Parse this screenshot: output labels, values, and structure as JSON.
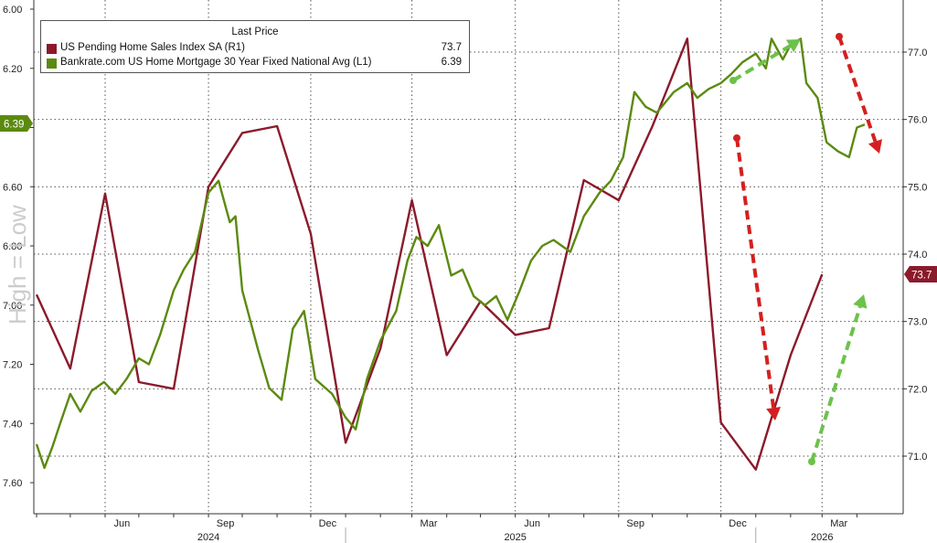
{
  "colors": {
    "pending": "#8B1A2B",
    "mortgage": "#5B8A0F",
    "red_arrow": "#D42020",
    "green_arrow": "#6CC24A",
    "grid": "#555555",
    "watermark": "#cccccc"
  },
  "legend": {
    "header": "Last Price",
    "items": [
      {
        "name": "US Pending Home Sales Index SA  (R1)",
        "value": "73.7",
        "color": "#8B1A2B"
      },
      {
        "name": "Bankrate.com US Home Mortgage 30 Year Fixed National Avg  (L1)",
        "value": "6.39",
        "color": "#5B8A0F"
      }
    ]
  },
  "badges": {
    "left": "6.39",
    "right": "73.7"
  },
  "watermark": "High = Low",
  "chart_data": {
    "type": "line",
    "x_month_labels": [
      "Jun",
      "Sep",
      "Dec",
      "Mar",
      "Jun",
      "Sep",
      "Dec",
      "Mar"
    ],
    "x_year_labels": [
      "2024",
      "2025",
      "2026"
    ],
    "x_range": [
      "2024-04-01",
      "2026-04-08"
    ],
    "y_left": {
      "ticks": [
        "6.00",
        "6.20",
        "6.40",
        "6.60",
        "6.80",
        "7.00",
        "7.20",
        "7.40",
        "7.60"
      ],
      "range": [
        6.0,
        7.6
      ],
      "inverted": true
    },
    "y_right": {
      "ticks": [
        "77.0",
        "76.0",
        "75.0",
        "74.0",
        "73.0",
        "72.0",
        "71.0"
      ],
      "range": [
        70.4,
        77.8
      ]
    },
    "grid": "dotted horizontal and vertical",
    "series": [
      {
        "name": "US Pending Home Sales Index SA",
        "axis": "right",
        "points": [
          [
            "2024-04-01",
            73.4
          ],
          [
            "2024-05-01",
            72.3
          ],
          [
            "2024-06-01",
            74.9
          ],
          [
            "2024-07-01",
            72.1
          ],
          [
            "2024-08-01",
            72.0
          ],
          [
            "2024-09-01",
            75.0
          ],
          [
            "2024-10-01",
            75.8
          ],
          [
            "2024-11-01",
            75.9
          ],
          [
            "2024-12-01",
            74.3
          ],
          [
            "2025-01-01",
            71.2
          ],
          [
            "2025-02-01",
            72.6
          ],
          [
            "2025-03-01",
            74.8
          ],
          [
            "2025-04-01",
            72.5
          ],
          [
            "2025-05-01",
            73.3
          ],
          [
            "2025-06-01",
            72.8
          ],
          [
            "2025-07-01",
            72.9
          ],
          [
            "2025-08-01",
            75.1
          ],
          [
            "2025-09-01",
            74.8
          ],
          [
            "2025-10-01",
            75.9
          ],
          [
            "2025-11-01",
            77.2
          ],
          [
            "2025-12-01",
            71.5
          ],
          [
            "2026-01-01",
            70.8
          ],
          [
            "2026-02-01",
            72.5
          ],
          [
            "2026-03-01",
            73.7
          ]
        ]
      },
      {
        "name": "Bankrate.com US Home Mortgage 30 Year Fixed National Avg",
        "axis": "left",
        "points": [
          [
            "2024-04-01",
            7.47
          ],
          [
            "2024-04-08",
            7.55
          ],
          [
            "2024-04-15",
            7.48
          ],
          [
            "2024-04-22",
            7.4
          ],
          [
            "2024-05-01",
            7.3
          ],
          [
            "2024-05-10",
            7.36
          ],
          [
            "2024-05-20",
            7.29
          ],
          [
            "2024-05-31",
            7.26
          ],
          [
            "2024-06-10",
            7.3
          ],
          [
            "2024-06-20",
            7.25
          ],
          [
            "2024-07-01",
            7.18
          ],
          [
            "2024-07-10",
            7.2
          ],
          [
            "2024-07-20",
            7.1
          ],
          [
            "2024-08-01",
            6.95
          ],
          [
            "2024-08-10",
            6.88
          ],
          [
            "2024-08-20",
            6.82
          ],
          [
            "2024-09-01",
            6.62
          ],
          [
            "2024-09-10",
            6.58
          ],
          [
            "2024-09-20",
            6.72
          ],
          [
            "2024-09-25",
            6.7
          ],
          [
            "2024-10-01",
            6.95
          ],
          [
            "2024-10-15",
            7.15
          ],
          [
            "2024-10-25",
            7.28
          ],
          [
            "2024-11-05",
            7.32
          ],
          [
            "2024-11-15",
            7.08
          ],
          [
            "2024-11-25",
            7.02
          ],
          [
            "2024-12-05",
            7.25
          ],
          [
            "2024-12-20",
            7.3
          ],
          [
            "2025-01-01",
            7.38
          ],
          [
            "2025-01-10",
            7.42
          ],
          [
            "2025-01-20",
            7.25
          ],
          [
            "2025-02-01",
            7.12
          ],
          [
            "2025-02-15",
            7.02
          ],
          [
            "2025-02-25",
            6.85
          ],
          [
            "2025-03-05",
            6.77
          ],
          [
            "2025-03-15",
            6.8
          ],
          [
            "2025-03-25",
            6.73
          ],
          [
            "2025-04-05",
            6.9
          ],
          [
            "2025-04-15",
            6.88
          ],
          [
            "2025-04-25",
            6.97
          ],
          [
            "2025-05-05",
            7.0
          ],
          [
            "2025-05-15",
            6.97
          ],
          [
            "2025-05-25",
            7.05
          ],
          [
            "2025-06-05",
            6.95
          ],
          [
            "2025-06-15",
            6.85
          ],
          [
            "2025-06-25",
            6.8
          ],
          [
            "2025-07-05",
            6.78
          ],
          [
            "2025-07-20",
            6.82
          ],
          [
            "2025-08-01",
            6.7
          ],
          [
            "2025-08-15",
            6.62
          ],
          [
            "2025-08-25",
            6.58
          ],
          [
            "2025-09-05",
            6.5
          ],
          [
            "2025-09-15",
            6.28
          ],
          [
            "2025-09-25",
            6.33
          ],
          [
            "2025-10-05",
            6.35
          ],
          [
            "2025-10-20",
            6.28
          ],
          [
            "2025-11-01",
            6.25
          ],
          [
            "2025-11-10",
            6.3
          ],
          [
            "2025-11-20",
            6.27
          ],
          [
            "2025-12-01",
            6.25
          ],
          [
            "2025-12-10",
            6.22
          ],
          [
            "2025-12-20",
            6.18
          ],
          [
            "2026-01-01",
            6.15
          ],
          [
            "2026-01-10",
            6.2
          ],
          [
            "2026-01-15",
            6.1
          ],
          [
            "2026-01-25",
            6.17
          ],
          [
            "2026-02-01",
            6.12
          ],
          [
            "2026-02-10",
            6.1
          ],
          [
            "2026-02-15",
            6.25
          ],
          [
            "2026-02-25",
            6.3
          ],
          [
            "2026-03-05",
            6.45
          ],
          [
            "2026-03-15",
            6.48
          ],
          [
            "2026-03-25",
            6.5
          ],
          [
            "2026-04-01",
            6.4
          ],
          [
            "2026-04-08",
            6.39
          ]
        ]
      }
    ]
  }
}
